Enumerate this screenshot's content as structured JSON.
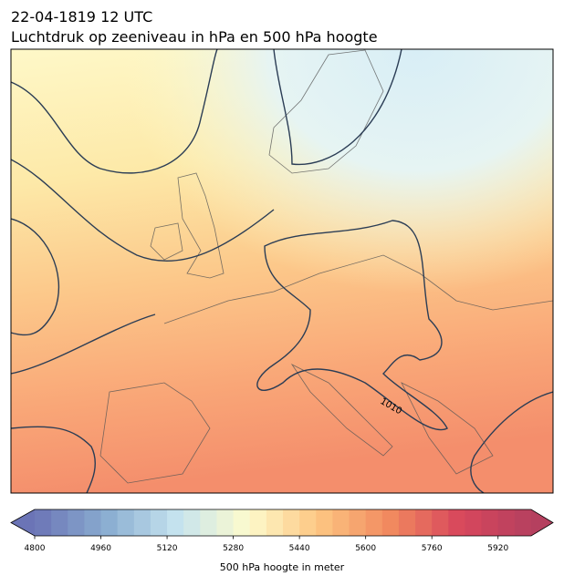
{
  "header": {
    "date": "22-04-1819 12 UTC",
    "title": "Luchtdruk op zeeniveau in hPa en 500 hPa hoogte"
  },
  "map": {
    "contour_labels": [
      "1010"
    ]
  },
  "colorbar": {
    "label": "500 hPa hoogte in meter",
    "lim": [
      4800,
      6000
    ],
    "step": 40,
    "ticks": [
      4800,
      4960,
      5120,
      5280,
      5440,
      5600,
      5760,
      5920
    ],
    "colors": [
      "#6b74b6",
      "#89acd0",
      "#c5e3ef",
      "#fdfbcd",
      "#fdc682",
      "#f18a5f",
      "#d8475c",
      "#b5405f"
    ]
  }
}
